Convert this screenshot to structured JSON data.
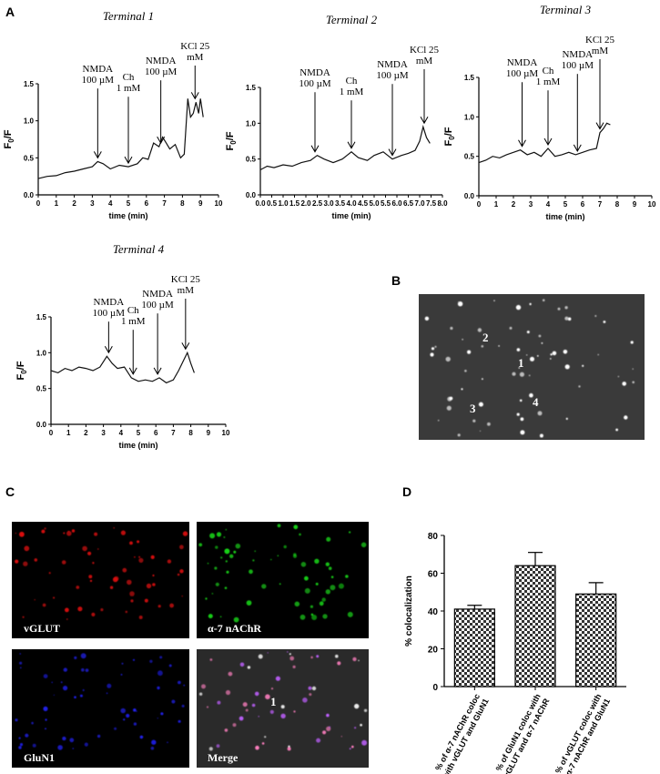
{
  "panels": {
    "A": "A",
    "B": "B",
    "C": "C",
    "D": "D"
  },
  "common": {
    "ylabel": "F0/F",
    "ylabel_main": "F",
    "ylabel_sub": "0",
    "ylabel_tail": "/F",
    "xlabel": "time (min)"
  },
  "terminals": [
    {
      "title": "Terminal 1",
      "annotations": [
        {
          "lines": [
            "NMDA",
            "100 µM"
          ],
          "x": 3.3
        },
        {
          "lines": [
            "Ch",
            "1 mM"
          ],
          "x": 5.0
        },
        {
          "lines": [
            "NMDA",
            "100 µM"
          ],
          "x": 6.8
        },
        {
          "lines": [
            "KCl 25",
            "mM"
          ],
          "x": 8.7
        }
      ]
    },
    {
      "title": "Terminal 2",
      "annotations": [
        {
          "lines": [
            "NMDA",
            "100 µM"
          ],
          "x": 2.4
        },
        {
          "lines": [
            "Ch",
            "1 mM"
          ],
          "x": 4.0
        },
        {
          "lines": [
            "NMDA",
            "100 µM"
          ],
          "x": 5.8
        },
        {
          "lines": [
            "KCl 25",
            "mM"
          ],
          "x": 7.2
        }
      ]
    },
    {
      "title": "Terminal 3",
      "annotations": [
        {
          "lines": [
            "NMDA",
            "100 µM"
          ],
          "x": 2.5
        },
        {
          "lines": [
            "Ch",
            "1 mM"
          ],
          "x": 4.0
        },
        {
          "lines": [
            "NMDA",
            "100 µM"
          ],
          "x": 5.7
        },
        {
          "lines": [
            "KCl 25",
            "mM"
          ],
          "x": 7.0
        }
      ]
    },
    {
      "title": "Terminal 4",
      "annotations": [
        {
          "lines": [
            "NMDA",
            "100 µM"
          ],
          "x": 3.3
        },
        {
          "lines": [
            "Ch",
            "1 mM"
          ],
          "x": 4.7
        },
        {
          "lines": [
            "NMDA",
            "100 µM"
          ],
          "x": 6.1
        },
        {
          "lines": [
            "KCl 25",
            "mM"
          ],
          "x": 7.7
        }
      ]
    }
  ],
  "image_B": {
    "labels": [
      "1",
      "2",
      "3",
      "4"
    ]
  },
  "image_C": {
    "labels": [
      "vGLUT",
      "α-7 nAChR",
      "GluN1",
      "Merge"
    ],
    "merge_marker": "1",
    "colors": [
      "#e01010",
      "#18d018",
      "#2020e8",
      "#e8d8f0"
    ]
  },
  "chart_data": [
    {
      "type": "line",
      "title": "Terminal 1",
      "xlabel": "time (min)",
      "ylabel": "F0/F",
      "xlim": [
        0,
        10
      ],
      "ylim": [
        0,
        1.5
      ],
      "xticks": [
        0,
        1,
        2,
        3,
        4,
        5,
        6,
        7,
        8,
        9,
        10
      ],
      "yticks": [
        0.0,
        0.5,
        1.0,
        1.5
      ],
      "x": [
        0,
        0.5,
        1,
        1.5,
        2,
        2.5,
        3,
        3.3,
        3.6,
        4,
        4.5,
        5,
        5.5,
        5.8,
        6.1,
        6.4,
        6.7,
        6.9,
        7.1,
        7.3,
        7.6,
        7.9,
        8.1,
        8.3,
        8.45,
        8.6,
        8.75,
        8.9,
        9.0,
        9.15
      ],
      "y": [
        0.22,
        0.25,
        0.26,
        0.3,
        0.32,
        0.35,
        0.38,
        0.45,
        0.42,
        0.35,
        0.4,
        0.38,
        0.42,
        0.5,
        0.48,
        0.7,
        0.65,
        0.78,
        0.7,
        0.62,
        0.68,
        0.5,
        0.55,
        1.3,
        1.05,
        1.1,
        1.25,
        1.1,
        1.3,
        1.05
      ]
    },
    {
      "type": "line",
      "title": "Terminal 2",
      "xlabel": "time (min)",
      "ylabel": "F0/F",
      "xlim": [
        0,
        8
      ],
      "ylim": [
        0,
        1.5
      ],
      "xticks": [
        0,
        0.5,
        1,
        1.5,
        2,
        2.5,
        3,
        3.5,
        4,
        4.5,
        5,
        5.5,
        6,
        6.5,
        7,
        7.5,
        8
      ],
      "yticks": [
        0.0,
        0.5,
        1.0,
        1.5
      ],
      "x": [
        0,
        0.3,
        0.6,
        1.0,
        1.4,
        1.8,
        2.2,
        2.5,
        2.8,
        3.2,
        3.6,
        4.0,
        4.3,
        4.7,
        5.0,
        5.4,
        5.8,
        6.2,
        6.5,
        6.8,
        7.0,
        7.15,
        7.3,
        7.45
      ],
      "y": [
        0.35,
        0.4,
        0.38,
        0.42,
        0.4,
        0.45,
        0.48,
        0.55,
        0.5,
        0.45,
        0.5,
        0.6,
        0.52,
        0.48,
        0.55,
        0.6,
        0.5,
        0.55,
        0.58,
        0.62,
        0.75,
        0.95,
        0.8,
        0.72
      ]
    },
    {
      "type": "line",
      "title": "Terminal 3",
      "xlabel": "time (min)",
      "ylabel": "F0/F",
      "xlim": [
        0,
        10
      ],
      "ylim": [
        0,
        1.5
      ],
      "xticks": [
        0,
        1,
        2,
        3,
        4,
        5,
        6,
        7,
        8,
        9,
        10
      ],
      "yticks": [
        0.0,
        0.5,
        1.0,
        1.5
      ],
      "x": [
        0,
        0.4,
        0.8,
        1.2,
        1.6,
        2.0,
        2.4,
        2.8,
        3.2,
        3.6,
        4.0,
        4.4,
        4.8,
        5.2,
        5.6,
        6.0,
        6.4,
        6.8,
        7.0,
        7.2,
        7.4,
        7.6
      ],
      "y": [
        0.42,
        0.45,
        0.5,
        0.48,
        0.52,
        0.55,
        0.58,
        0.52,
        0.55,
        0.5,
        0.6,
        0.5,
        0.52,
        0.55,
        0.52,
        0.55,
        0.58,
        0.6,
        0.8,
        0.85,
        0.92,
        0.9
      ]
    },
    {
      "type": "line",
      "title": "Terminal 4",
      "xlabel": "time (min)",
      "ylabel": "F0/F",
      "xlim": [
        0,
        10
      ],
      "ylim": [
        0,
        1.5
      ],
      "xticks": [
        0,
        1,
        2,
        3,
        4,
        5,
        6,
        7,
        8,
        9,
        10
      ],
      "yticks": [
        0.0,
        0.5,
        1.0,
        1.5
      ],
      "x": [
        0,
        0.4,
        0.8,
        1.2,
        1.6,
        2.0,
        2.4,
        2.8,
        3.2,
        3.5,
        3.8,
        4.2,
        4.6,
        5.0,
        5.4,
        5.8,
        6.2,
        6.6,
        7.0,
        7.3,
        7.6,
        7.8,
        8.0,
        8.2
      ],
      "y": [
        0.75,
        0.72,
        0.78,
        0.75,
        0.8,
        0.78,
        0.75,
        0.8,
        0.95,
        0.85,
        0.78,
        0.8,
        0.65,
        0.6,
        0.62,
        0.6,
        0.65,
        0.58,
        0.62,
        0.75,
        0.9,
        1.0,
        0.85,
        0.72
      ]
    },
    {
      "type": "bar",
      "ylabel": "% colocalization",
      "ylim": [
        0,
        80
      ],
      "yticks": [
        0,
        20,
        40,
        60,
        80
      ],
      "categories": [
        "% of α-7 nAChR coloc with vGLUT and GluN1",
        "% of GluN1 coloc with vGLUT and α-7 nAChR",
        "% of vGLUT coloc with α-7 nAChR and GluN1"
      ],
      "category_lines": [
        [
          "% of α-7 nAChR coloc",
          "with vGLUT and GluN1"
        ],
        [
          "% of GluN1 coloc with",
          "vGLUT and α-7 nAChR"
        ],
        [
          "% of vGLUT coloc with",
          "α-7 nAChR and GluN1"
        ]
      ],
      "values": [
        41,
        64,
        49
      ],
      "errors": [
        2,
        7,
        6
      ]
    }
  ]
}
